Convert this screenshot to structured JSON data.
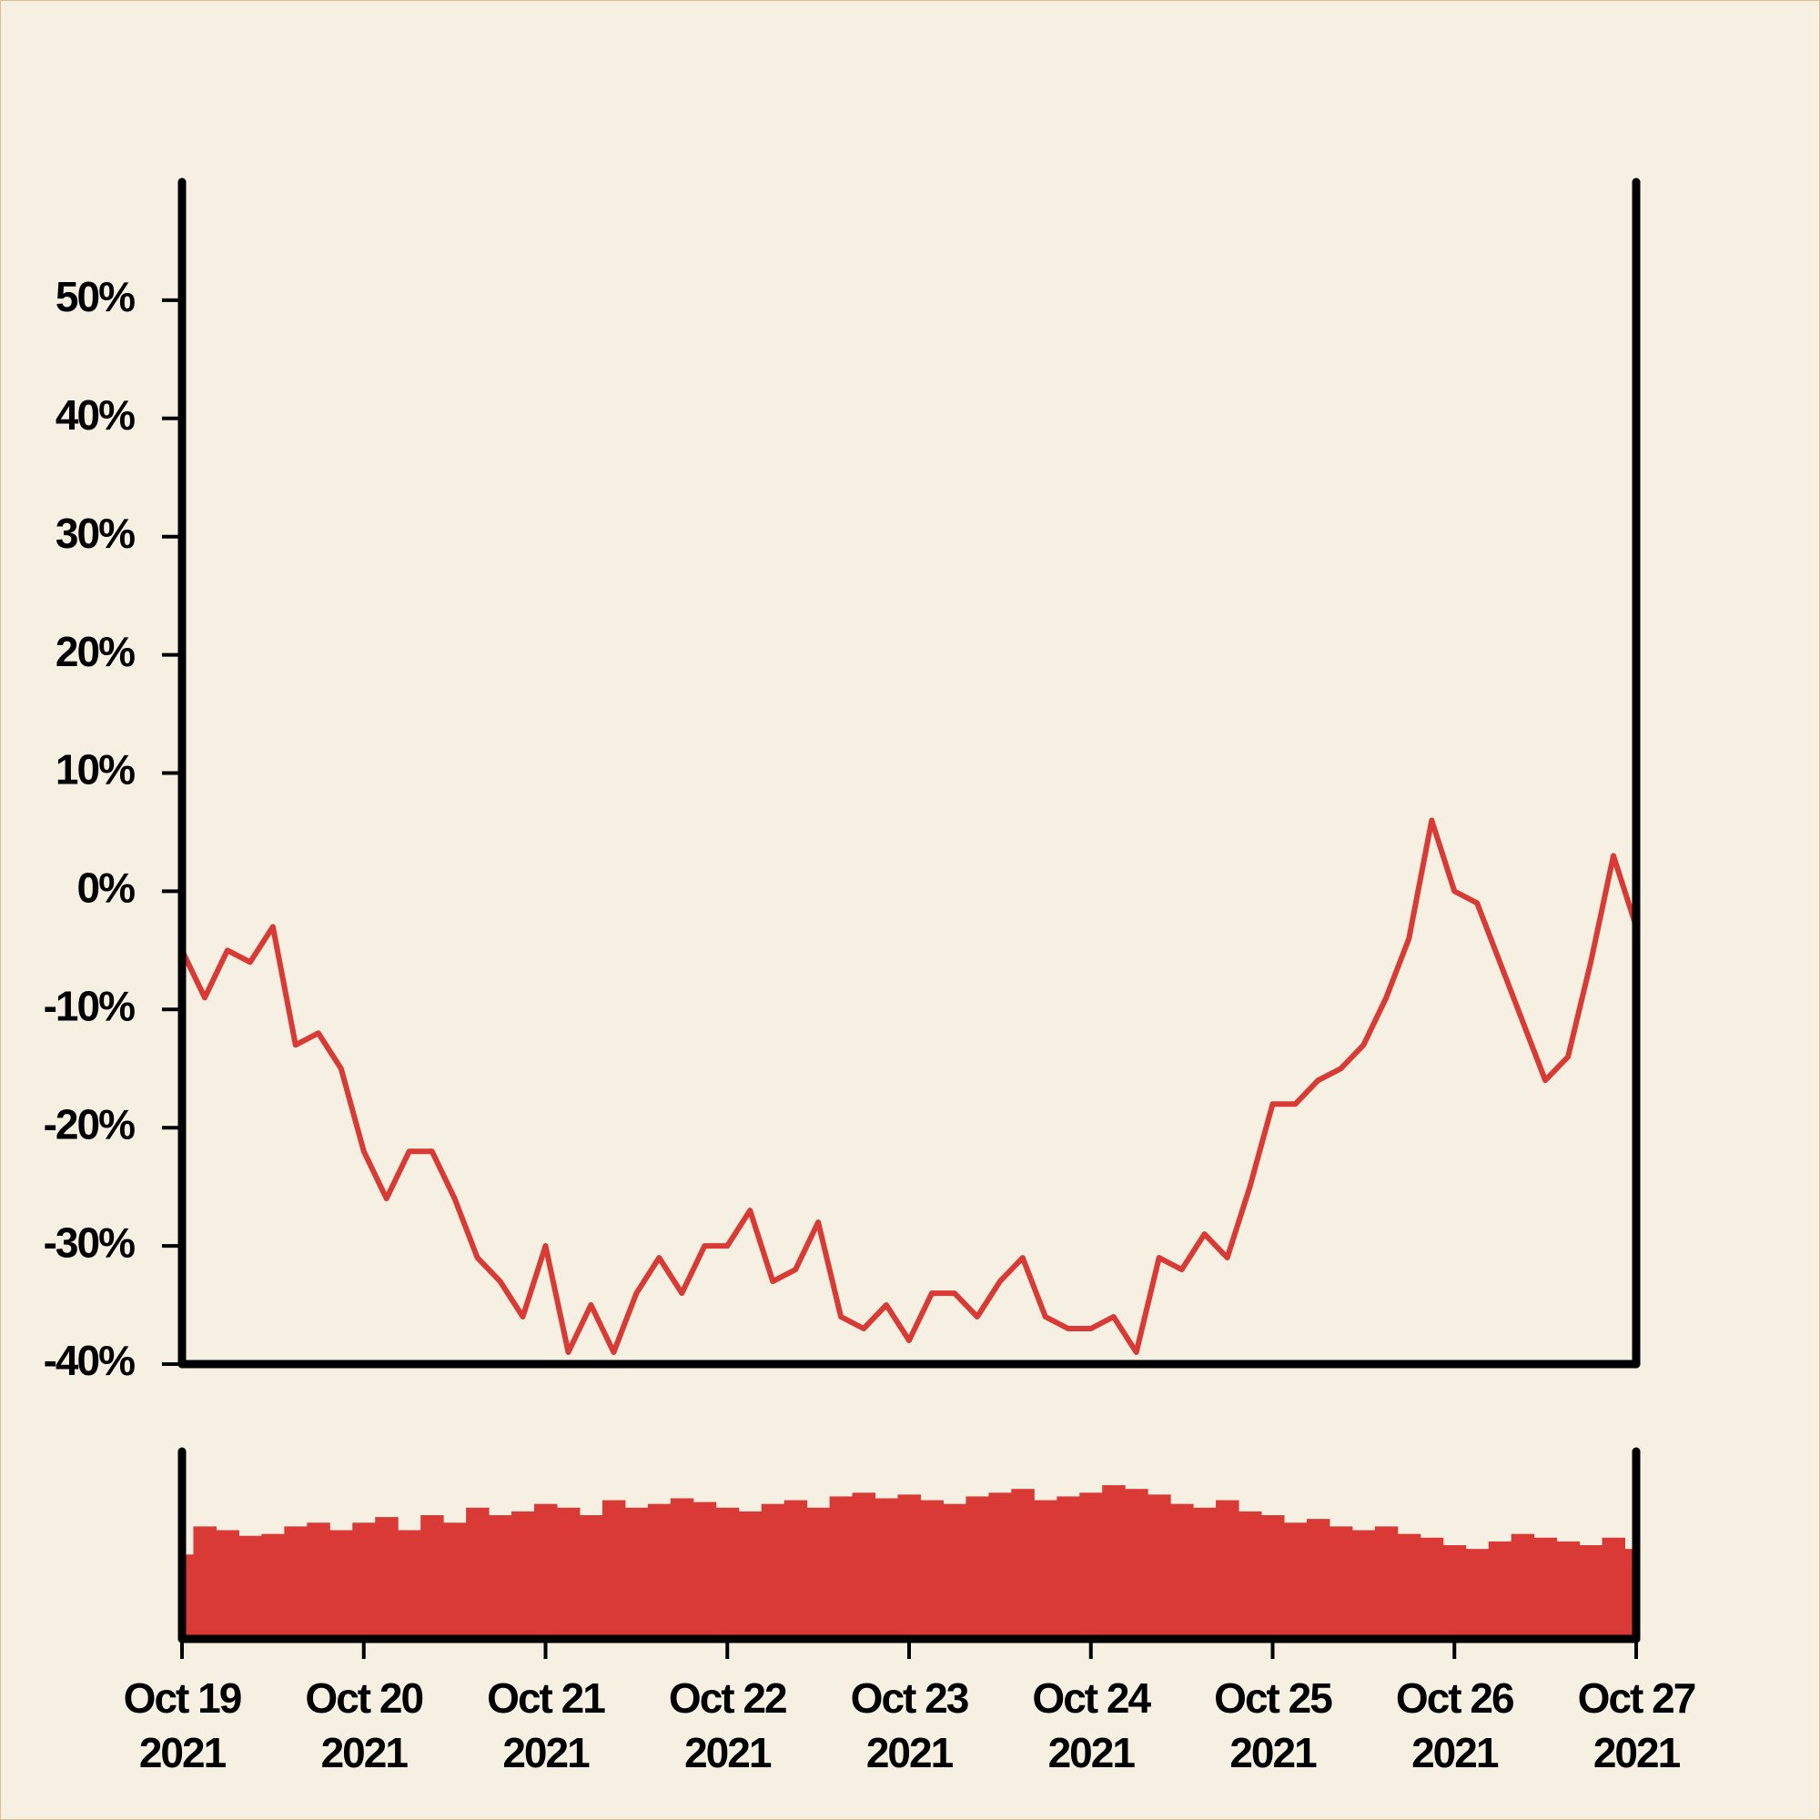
{
  "chart_data": [
    {
      "type": "line",
      "color": "#d93a35",
      "xlim": [
        "2021-10-19T00:00",
        "2021-10-27T00:00"
      ],
      "ylim": [
        -40,
        60
      ],
      "yticks": [
        {
          "value": -40,
          "label": "-40%"
        },
        {
          "value": -30,
          "label": "-30%"
        },
        {
          "value": -20,
          "label": "-20%"
        },
        {
          "value": -10,
          "label": "-10%"
        },
        {
          "value": 0,
          "label": "0%"
        },
        {
          "value": 10,
          "label": "10%"
        },
        {
          "value": 20,
          "label": "20%"
        },
        {
          "value": 30,
          "label": "30%"
        },
        {
          "value": 40,
          "label": "40%"
        },
        {
          "value": 50,
          "label": "50%"
        }
      ],
      "x": [
        "2021-10-19T00:00",
        "2021-10-19T03:00",
        "2021-10-19T06:00",
        "2021-10-19T09:00",
        "2021-10-19T12:00",
        "2021-10-19T15:00",
        "2021-10-19T18:00",
        "2021-10-19T21:00",
        "2021-10-20T00:00",
        "2021-10-20T03:00",
        "2021-10-20T06:00",
        "2021-10-20T09:00",
        "2021-10-20T12:00",
        "2021-10-20T15:00",
        "2021-10-20T18:00",
        "2021-10-20T21:00",
        "2021-10-21T00:00",
        "2021-10-21T03:00",
        "2021-10-21T06:00",
        "2021-10-21T09:00",
        "2021-10-21T12:00",
        "2021-10-21T15:00",
        "2021-10-21T18:00",
        "2021-10-21T21:00",
        "2021-10-22T00:00",
        "2021-10-22T03:00",
        "2021-10-22T06:00",
        "2021-10-22T09:00",
        "2021-10-22T12:00",
        "2021-10-22T15:00",
        "2021-10-22T18:00",
        "2021-10-22T21:00",
        "2021-10-23T00:00",
        "2021-10-23T03:00",
        "2021-10-23T06:00",
        "2021-10-23T09:00",
        "2021-10-23T12:00",
        "2021-10-23T15:00",
        "2021-10-23T18:00",
        "2021-10-23T21:00",
        "2021-10-24T00:00",
        "2021-10-24T03:00",
        "2021-10-24T06:00",
        "2021-10-24T09:00",
        "2021-10-24T12:00",
        "2021-10-24T15:00",
        "2021-10-24T18:00",
        "2021-10-24T21:00",
        "2021-10-25T00:00",
        "2021-10-25T03:00",
        "2021-10-25T06:00",
        "2021-10-25T09:00",
        "2021-10-25T12:00",
        "2021-10-25T15:00",
        "2021-10-25T18:00",
        "2021-10-25T21:00",
        "2021-10-26T00:00",
        "2021-10-26T03:00",
        "2021-10-26T06:00",
        "2021-10-26T09:00",
        "2021-10-26T12:00",
        "2021-10-26T15:00",
        "2021-10-26T18:00",
        "2021-10-26T21:00",
        "2021-10-27T00:00"
      ],
      "values": [
        -5,
        -9,
        -5,
        -6,
        -3,
        -13,
        -12,
        -15,
        -22,
        -26,
        -22,
        -22,
        -26,
        -31,
        -33,
        -36,
        -30,
        -39,
        -35,
        -39,
        -34,
        -31,
        -34,
        -30,
        -30,
        -27,
        -33,
        -32,
        -28,
        -36,
        -37,
        -35,
        -38,
        -34,
        -34,
        -36,
        -33,
        -31,
        -36,
        -37,
        -37,
        -36,
        -39,
        -31,
        -32,
        -29,
        -31,
        -25,
        -18,
        -18,
        -16,
        -15,
        -13,
        -9,
        -4,
        6,
        0,
        -1,
        -6,
        -11,
        -16,
        -14,
        -6,
        3,
        -3
      ]
    },
    {
      "type": "bar",
      "color": "#d93a35",
      "xlim": [
        "2021-10-19T00:00",
        "2021-10-27T00:00"
      ],
      "ylim": [
        0,
        100
      ],
      "xticks": [
        {
          "value": "2021-10-19T00:00",
          "label": "Oct 19\n2021"
        },
        {
          "value": "2021-10-20T00:00",
          "label": "Oct 20\n2021"
        },
        {
          "value": "2021-10-21T00:00",
          "label": "Oct 21\n2021"
        },
        {
          "value": "2021-10-22T00:00",
          "label": "Oct 22\n2021"
        },
        {
          "value": "2021-10-23T00:00",
          "label": "Oct 23\n2021"
        },
        {
          "value": "2021-10-24T00:00",
          "label": "Oct 24\n2021"
        },
        {
          "value": "2021-10-25T00:00",
          "label": "Oct 25\n2021"
        },
        {
          "value": "2021-10-26T00:00",
          "label": "Oct 26\n2021"
        },
        {
          "value": "2021-10-27T00:00",
          "label": "Oct 27\n2021"
        }
      ],
      "x": [
        "2021-10-19T00:00",
        "2021-10-19T03:00",
        "2021-10-19T06:00",
        "2021-10-19T09:00",
        "2021-10-19T12:00",
        "2021-10-19T15:00",
        "2021-10-19T18:00",
        "2021-10-19T21:00",
        "2021-10-20T00:00",
        "2021-10-20T03:00",
        "2021-10-20T06:00",
        "2021-10-20T09:00",
        "2021-10-20T12:00",
        "2021-10-20T15:00",
        "2021-10-20T18:00",
        "2021-10-20T21:00",
        "2021-10-21T00:00",
        "2021-10-21T03:00",
        "2021-10-21T06:00",
        "2021-10-21T09:00",
        "2021-10-21T12:00",
        "2021-10-21T15:00",
        "2021-10-21T18:00",
        "2021-10-21T21:00",
        "2021-10-22T00:00",
        "2021-10-22T03:00",
        "2021-10-22T06:00",
        "2021-10-22T09:00",
        "2021-10-22T12:00",
        "2021-10-22T15:00",
        "2021-10-22T18:00",
        "2021-10-22T21:00",
        "2021-10-23T00:00",
        "2021-10-23T03:00",
        "2021-10-23T06:00",
        "2021-10-23T09:00",
        "2021-10-23T12:00",
        "2021-10-23T15:00",
        "2021-10-23T18:00",
        "2021-10-23T21:00",
        "2021-10-24T00:00",
        "2021-10-24T03:00",
        "2021-10-24T06:00",
        "2021-10-24T09:00",
        "2021-10-24T12:00",
        "2021-10-24T15:00",
        "2021-10-24T18:00",
        "2021-10-24T21:00",
        "2021-10-25T00:00",
        "2021-10-25T03:00",
        "2021-10-25T06:00",
        "2021-10-25T09:00",
        "2021-10-25T12:00",
        "2021-10-25T15:00",
        "2021-10-25T18:00",
        "2021-10-25T21:00",
        "2021-10-26T00:00",
        "2021-10-26T03:00",
        "2021-10-26T06:00",
        "2021-10-26T09:00",
        "2021-10-26T12:00",
        "2021-10-26T15:00",
        "2021-10-26T18:00",
        "2021-10-26T21:00",
        "2021-10-27T00:00"
      ],
      "values": [
        45,
        60,
        58,
        55,
        56,
        60,
        62,
        58,
        62,
        65,
        58,
        66,
        62,
        70,
        66,
        68,
        72,
        70,
        66,
        74,
        70,
        72,
        75,
        73,
        70,
        68,
        72,
        74,
        70,
        76,
        78,
        75,
        77,
        74,
        72,
        76,
        78,
        80,
        74,
        76,
        78,
        82,
        80,
        77,
        72,
        70,
        74,
        68,
        66,
        62,
        64,
        60,
        58,
        60,
        56,
        54,
        50,
        48,
        52,
        56,
        54,
        52,
        50,
        54,
        48
      ]
    }
  ]
}
